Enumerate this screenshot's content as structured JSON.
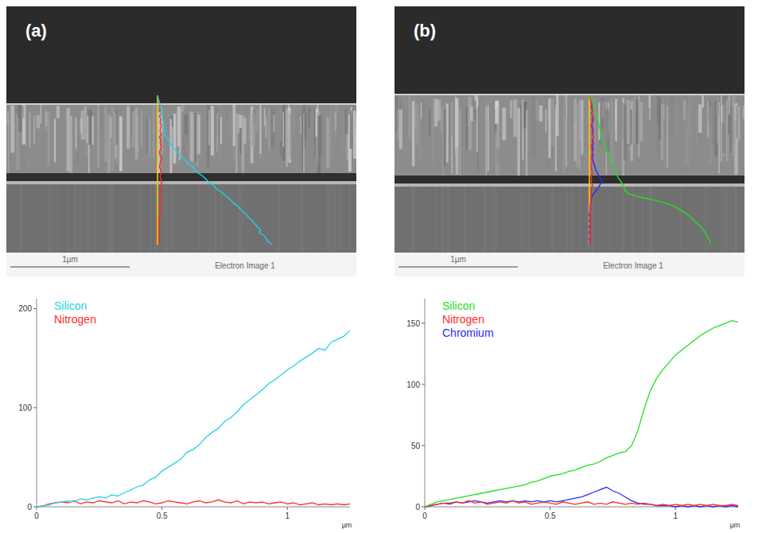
{
  "figure": {
    "panels": [
      {
        "label": "(a)",
        "scale_bar": "1µm",
        "caption": "Electron Image 1"
      },
      {
        "label": "(b)",
        "scale_bar": "1µm",
        "caption": "Electron Image 1"
      }
    ]
  },
  "chart_data": [
    {
      "type": "line",
      "x_label": "µm",
      "legend": "upper left",
      "x": [
        0,
        0.025,
        0.05,
        0.075,
        0.1,
        0.125,
        0.15,
        0.175,
        0.2,
        0.225,
        0.25,
        0.275,
        0.3,
        0.325,
        0.35,
        0.375,
        0.4,
        0.425,
        0.45,
        0.475,
        0.5,
        0.525,
        0.55,
        0.575,
        0.6,
        0.625,
        0.65,
        0.675,
        0.7,
        0.725,
        0.75,
        0.775,
        0.8,
        0.825,
        0.85,
        0.875,
        0.9,
        0.925,
        0.95,
        0.975,
        1,
        1.025,
        1.05,
        1.075,
        1.1,
        1.125,
        1.15,
        1.175,
        1.2,
        1.225,
        1.25
      ],
      "xlim": [
        0,
        1.25
      ],
      "xticks": [
        0,
        0.5,
        1
      ],
      "ylim": [
        0,
        210
      ],
      "yticks": [
        0,
        100,
        200
      ],
      "series": [
        {
          "name": "Silicon",
          "color": "#22d3e6",
          "values": [
            0,
            1,
            2,
            4,
            5,
            6,
            5,
            8,
            7,
            9,
            10,
            9,
            12,
            11,
            14,
            17,
            20,
            22,
            27,
            30,
            36,
            40,
            44,
            48,
            55,
            58,
            63,
            70,
            75,
            79,
            86,
            90,
            96,
            103,
            108,
            113,
            118,
            124,
            128,
            133,
            138,
            142,
            147,
            151,
            155,
            160,
            158,
            166,
            169,
            172,
            178
          ]
        },
        {
          "name": "Nitrogen",
          "color": "#ff2a2a",
          "values": [
            0,
            1,
            3,
            4,
            5,
            4,
            6,
            3,
            5,
            4,
            6,
            5,
            4,
            6,
            3,
            5,
            4,
            6,
            5,
            3,
            4,
            6,
            5,
            4,
            3,
            5,
            6,
            4,
            5,
            7,
            5,
            4,
            6,
            3,
            5,
            4,
            5,
            3,
            4,
            5,
            3,
            4,
            2,
            3,
            4,
            2,
            3,
            2,
            3,
            2,
            3
          ]
        }
      ]
    },
    {
      "type": "line",
      "x_label": "µm",
      "legend": "upper left",
      "x": [
        0,
        0.025,
        0.05,
        0.075,
        0.1,
        0.125,
        0.15,
        0.175,
        0.2,
        0.225,
        0.25,
        0.275,
        0.3,
        0.325,
        0.35,
        0.375,
        0.4,
        0.425,
        0.45,
        0.475,
        0.5,
        0.525,
        0.55,
        0.575,
        0.6,
        0.625,
        0.65,
        0.675,
        0.7,
        0.725,
        0.75,
        0.775,
        0.8,
        0.825,
        0.85,
        0.875,
        0.9,
        0.925,
        0.95,
        0.975,
        1,
        1.025,
        1.05,
        1.075,
        1.1,
        1.125,
        1.15,
        1.175,
        1.2,
        1.225,
        1.25
      ],
      "xlim": [
        0,
        1.25
      ],
      "xticks": [
        0,
        0.5,
        1
      ],
      "ylim": [
        0,
        170
      ],
      "yticks": [
        0,
        50,
        100,
        150
      ],
      "series": [
        {
          "name": "Silicon",
          "color": "#22e022",
          "values": [
            0,
            2,
            4,
            5,
            6,
            7,
            8,
            9,
            10,
            11,
            12,
            13,
            14,
            15,
            16,
            17,
            18,
            20,
            21,
            23,
            25,
            26,
            27,
            29,
            30,
            32,
            34,
            35,
            37,
            40,
            42,
            44,
            45,
            50,
            62,
            80,
            95,
            105,
            112,
            118,
            124,
            128,
            132,
            136,
            140,
            143,
            146,
            148,
            150,
            152,
            151
          ]
        },
        {
          "name": "Nitrogen",
          "color": "#ff2a2a",
          "values": [
            0,
            1,
            2,
            3,
            2,
            4,
            3,
            5,
            3,
            4,
            2,
            3,
            4,
            3,
            5,
            3,
            4,
            2,
            3,
            4,
            3,
            2,
            4,
            3,
            2,
            3,
            4,
            2,
            3,
            2,
            4,
            3,
            2,
            3,
            2,
            3,
            2,
            1,
            2,
            1,
            2,
            1,
            2,
            1,
            2,
            1,
            2,
            1,
            1,
            2,
            1
          ]
        },
        {
          "name": "Chromium",
          "color": "#2a2aff",
          "values": [
            0,
            1,
            2,
            3,
            3,
            4,
            3,
            4,
            5,
            4,
            3,
            4,
            5,
            4,
            5,
            4,
            5,
            4,
            5,
            4,
            5,
            4,
            5,
            6,
            7,
            8,
            10,
            12,
            14,
            16,
            13,
            11,
            8,
            5,
            3,
            2,
            2,
            1,
            1,
            1,
            0,
            1,
            0,
            1,
            0,
            1,
            0,
            1,
            0,
            1,
            0
          ]
        }
      ]
    }
  ]
}
